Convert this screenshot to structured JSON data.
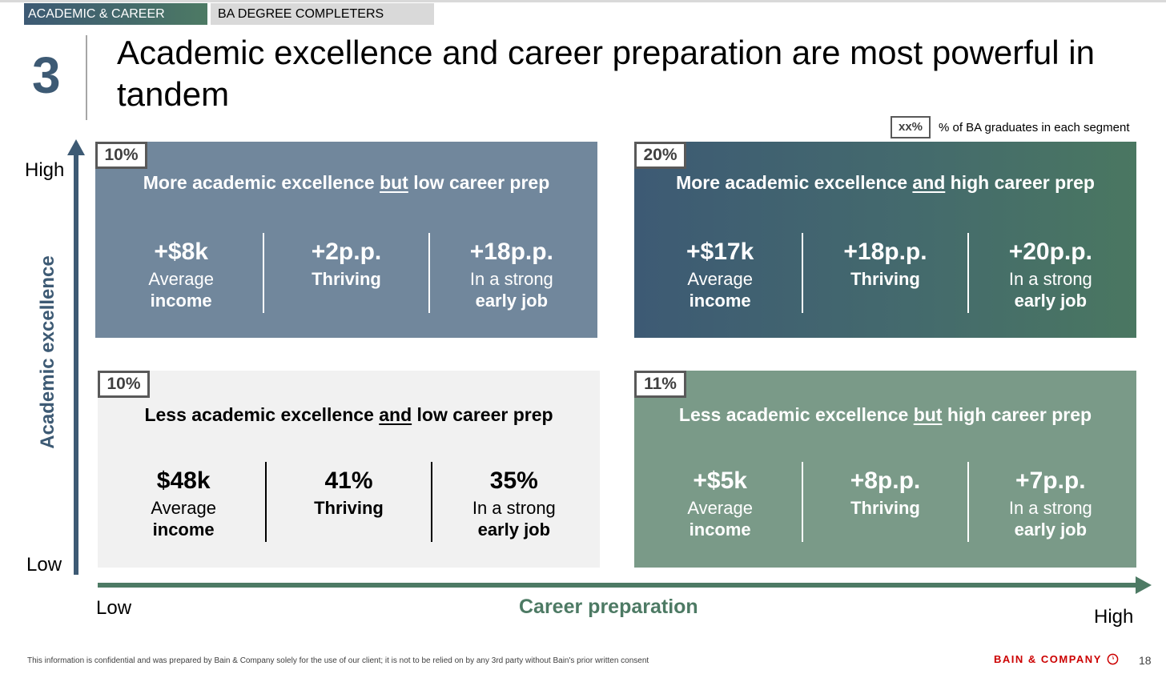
{
  "tags": {
    "primary": "ACADEMIC & CAREER",
    "secondary": "BA DEGREE COMPLETERS"
  },
  "section_number": "3",
  "title": "Academic excellence and career preparation are most powerful in tandem",
  "legend": {
    "box": "xx%",
    "text": "% of BA graduates in each segment"
  },
  "y_axis": {
    "title": "Academic excellence",
    "high": "High",
    "low": "Low"
  },
  "x_axis": {
    "title": "Career preparation",
    "low": "Low",
    "high": "High"
  },
  "quadrants": {
    "top_left": {
      "percent": "10%",
      "heading_pre": "More academic excellence ",
      "heading_emph": "but",
      "heading_post": " low career prep",
      "metrics": [
        {
          "value": "+$8k",
          "label_1": "Average",
          "label_2": "income"
        },
        {
          "value": "+2p.p.",
          "label_1": "Thriving",
          "label_2": ""
        },
        {
          "value": "+18p.p.",
          "label_1": "In a strong",
          "label_2": "early job"
        }
      ]
    },
    "top_right": {
      "percent": "20%",
      "heading_pre": "More academic excellence ",
      "heading_emph": "and",
      "heading_post": " high career prep",
      "metrics": [
        {
          "value": "+$17k",
          "label_1": "Average",
          "label_2": "income"
        },
        {
          "value": "+18p.p.",
          "label_1": "Thriving",
          "label_2": ""
        },
        {
          "value": "+20p.p.",
          "label_1": "In a strong",
          "label_2": "early job"
        }
      ]
    },
    "bottom_left": {
      "percent": "10%",
      "heading_pre": "Less academic excellence ",
      "heading_emph": "and",
      "heading_post": " low career prep",
      "metrics": [
        {
          "value": "$48k",
          "label_1": "Average",
          "label_2": "income"
        },
        {
          "value": "41%",
          "label_1": "Thriving",
          "label_2": ""
        },
        {
          "value": "35%",
          "label_1": "In a strong",
          "label_2": "early job"
        }
      ]
    },
    "bottom_right": {
      "percent": "11%",
      "heading_pre": "Less academic excellence ",
      "heading_emph": "but",
      "heading_post": " high career prep",
      "metrics": [
        {
          "value": "+$5k",
          "label_1": "Average",
          "label_2": "income"
        },
        {
          "value": "+8p.p.",
          "label_1": "Thriving",
          "label_2": ""
        },
        {
          "value": "+7p.p.",
          "label_1": "In a strong",
          "label_2": "early job"
        }
      ]
    }
  },
  "footer": {
    "note": "This information is confidential and was prepared by Bain & Company solely for the use of our client; it is not to be relied on by any 3rd party without Bain's prior written consent",
    "brand": "BAIN & COMPANY",
    "page": "18"
  },
  "colors": {
    "navy": "#3d5a74",
    "green": "#4d7a64",
    "slate_quadrant": "#71879c",
    "light_quadrant": "#f1f1f1",
    "sage_quadrant": "#7a9a88",
    "brand_red": "#cc0000"
  }
}
